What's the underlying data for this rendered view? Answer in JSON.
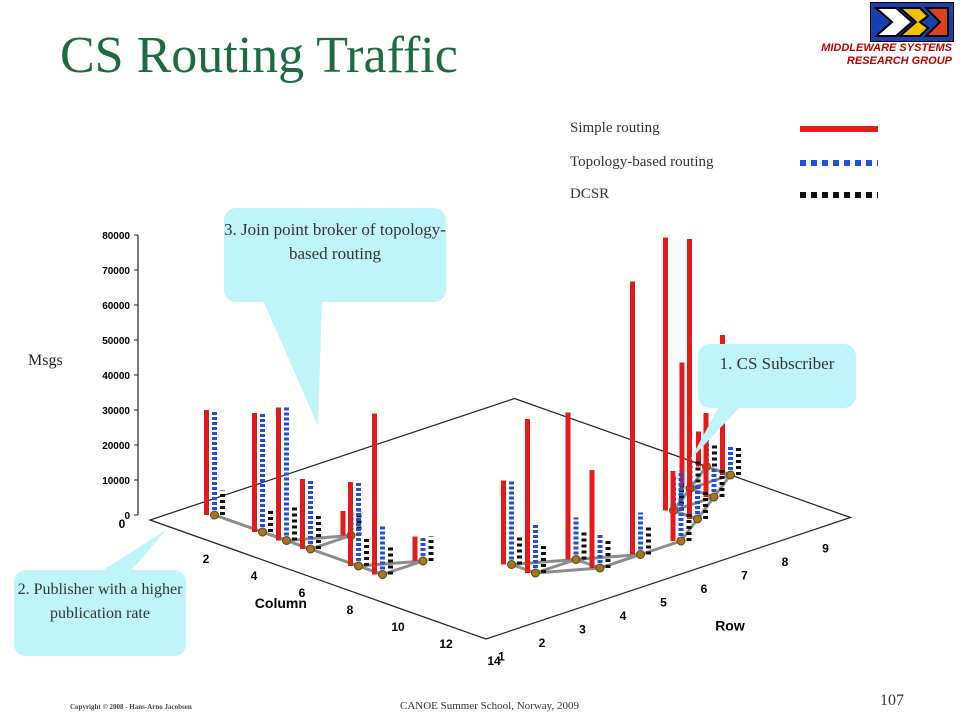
{
  "title": "CS Routing Traffic",
  "org": {
    "line1": "MIDDLEWARE SYSTEMS",
    "line2": "RESEARCH GROUP"
  },
  "legend": [
    {
      "label": "Simple routing",
      "color": "#e31b1b",
      "style": "solid"
    },
    {
      "label": "Topology-based routing",
      "color": "#1f4fe0",
      "style": "dashed"
    },
    {
      "label": "DCSR",
      "color": "#111111",
      "style": "dashed"
    }
  ],
  "callouts": {
    "join_point": "3. Join point broker of topology-based routing",
    "subscriber": "1. CS Subscriber",
    "publisher": "2. Publisher with a higher publication rate"
  },
  "footer": {
    "copyright": "Copyright © 2008 - Hans-Arno Jacobsen",
    "event": "CANOE Summer School, Norway, 2009",
    "page": "107"
  },
  "chart_data": {
    "type": "bar",
    "subtype": "3d-bar-grid",
    "zlabel": "Msgs",
    "xlabel": "Column",
    "ylabel": "Row",
    "zlim": [
      0,
      80000
    ],
    "z_ticks": [
      "0",
      "10000",
      "20000",
      "30000",
      "40000",
      "50000",
      "60000",
      "70000",
      "80000"
    ],
    "column_ticks": [
      "0",
      "2",
      "4",
      "6",
      "8",
      "10",
      "12",
      "14"
    ],
    "row_ticks": [
      "1",
      "2",
      "3",
      "4",
      "5",
      "6",
      "7",
      "8",
      "9"
    ],
    "bar_groups": [
      {
        "row": 1,
        "column": 1,
        "simple": 30000,
        "topology": 30000,
        "dcsr": 7000
      },
      {
        "row": 1,
        "column": 3,
        "simple": 34000,
        "topology": 34000,
        "dcsr": 6000
      },
      {
        "row": 1,
        "column": 4,
        "simple": 38000,
        "topology": 38000,
        "dcsr": 10000
      },
      {
        "row": 1,
        "column": 5,
        "simple": 20000,
        "topology": 20000,
        "dcsr": 10000
      },
      {
        "row": 1,
        "column": 7,
        "simple": 24000,
        "topology": 24000,
        "dcsr": 8000
      },
      {
        "row": 1,
        "column": 8,
        "simple": 46000,
        "topology": 14000,
        "dcsr": 8000
      },
      {
        "row": 2,
        "column": 5,
        "simple": 7000,
        "topology": 7000,
        "dcsr": 7000
      },
      {
        "row": 2,
        "column": 8,
        "simple": 7000,
        "topology": 7000,
        "dcsr": 7000
      },
      {
        "row": 3,
        "column": 10,
        "simple": 24000,
        "topology": 24000,
        "dcsr": 8000
      },
      {
        "row": 3,
        "column": 11,
        "simple": 44000,
        "topology": 14000,
        "dcsr": 8000
      },
      {
        "row": 4,
        "column": 11,
        "simple": 42000,
        "topology": 12000,
        "dcsr": 8000
      },
      {
        "row": 4,
        "column": 12,
        "simple": 28000,
        "topology": 10000,
        "dcsr": 8000
      },
      {
        "row": 5,
        "column": 12,
        "simple": 78000,
        "topology": 12000,
        "dcsr": 8000
      },
      {
        "row": 6,
        "column": 12,
        "simple": 20000,
        "topology": 20000,
        "dcsr": 8000
      },
      {
        "row": 7,
        "column": 11,
        "simple": 80000,
        "topology": 10000,
        "dcsr": 8000
      },
      {
        "row": 7,
        "column": 10,
        "simple": 78000,
        "topology": 10000,
        "dcsr": 8000
      },
      {
        "row": 8,
        "column": 10,
        "simple": 24000,
        "topology": 8000,
        "dcsr": 8000
      },
      {
        "row": 8,
        "column": 9,
        "simple": 36000,
        "topology": 8000,
        "dcsr": 8000
      },
      {
        "row": 9,
        "column": 9,
        "simple": 40000,
        "topology": 8000,
        "dcsr": 8000
      },
      {
        "row": 9,
        "column": 8,
        "simple": 10000,
        "topology": 10000,
        "dcsr": 6000
      }
    ]
  }
}
